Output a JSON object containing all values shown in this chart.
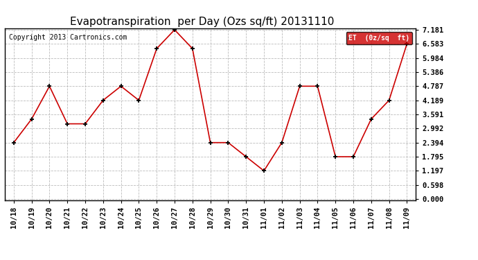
{
  "title": "Evapotranspiration  per Day (Ozs sq/ft) 20131110",
  "copyright": "Copyright 2013 Cartronics.com",
  "legend_label": "ET  (0z/sq  ft)",
  "x_labels": [
    "10/18",
    "10/19",
    "10/20",
    "10/21",
    "10/22",
    "10/23",
    "10/24",
    "10/25",
    "10/26",
    "10/27",
    "10/28",
    "10/29",
    "10/30",
    "10/31",
    "11/01",
    "11/02",
    "11/03",
    "11/04",
    "11/05",
    "11/06",
    "11/07",
    "11/08",
    "11/09"
  ],
  "y_values": [
    2.394,
    3.392,
    4.787,
    3.191,
    3.191,
    4.189,
    4.787,
    4.189,
    6.383,
    7.181,
    6.383,
    2.394,
    2.394,
    1.795,
    1.197,
    2.394,
    4.787,
    4.787,
    1.795,
    1.795,
    3.392,
    4.189,
    6.583
  ],
  "y_ticks": [
    0.0,
    0.598,
    1.197,
    1.795,
    2.394,
    2.992,
    3.591,
    4.189,
    4.787,
    5.386,
    5.984,
    6.583,
    7.181
  ],
  "line_color": "#cc0000",
  "marker_color": "#000000",
  "background_color": "#ffffff",
  "grid_color": "#bbbbbb",
  "legend_bg": "#cc0000",
  "legend_text_color": "#ffffff",
  "title_fontsize": 11,
  "copyright_fontsize": 7,
  "tick_fontsize": 7.5,
  "border_color": "#000000"
}
